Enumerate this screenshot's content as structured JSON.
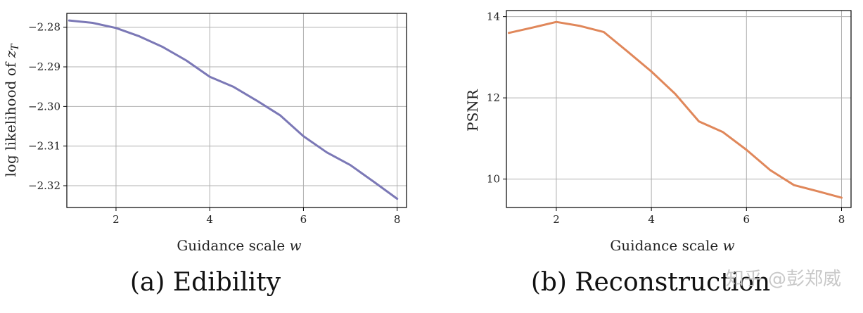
{
  "chart_data": [
    {
      "type": "line",
      "caption": "(a) Edibility",
      "xlabel": "Guidance scale w",
      "ylabel": "log likelihood of z_T",
      "xlim": [
        0.95,
        8.2
      ],
      "ylim": [
        -2.3255,
        -2.2765
      ],
      "xticks": [
        2,
        4,
        6,
        8
      ],
      "yticks": [
        -2.28,
        -2.29,
        -2.3,
        -2.31,
        -2.32
      ],
      "ytick_labels": [
        "−2.28",
        "−2.29",
        "−2.30",
        "−2.31",
        "−2.32"
      ],
      "grid": true,
      "color": "#7b78b6",
      "x": [
        1,
        1.5,
        2,
        2.5,
        3,
        3.5,
        4,
        4.5,
        5,
        5.5,
        6,
        6.5,
        7,
        7.5,
        8
      ],
      "y": [
        -2.2783,
        -2.2789,
        -2.2802,
        -2.2823,
        -2.285,
        -2.2884,
        -2.2925,
        -2.295,
        -2.2985,
        -2.3022,
        -2.3075,
        -2.3116,
        -2.3148,
        -2.319,
        -2.3233
      ]
    },
    {
      "type": "line",
      "caption": "(b) Reconstruction",
      "xlabel": "Guidance scale w",
      "ylabel": "PSNR",
      "xlim": [
        0.95,
        8.2
      ],
      "ylim": [
        9.3,
        14.15
      ],
      "xticks": [
        2,
        4,
        6,
        8
      ],
      "yticks": [
        10,
        12,
        14
      ],
      "ytick_labels": [
        "10",
        "12",
        "14"
      ],
      "grid": true,
      "color": "#e0875a",
      "x": [
        1,
        1.5,
        2,
        2.5,
        3,
        3.5,
        4,
        4.5,
        5,
        5.5,
        6,
        6.5,
        7,
        7.5,
        8
      ],
      "y": [
        13.6,
        13.73,
        13.87,
        13.77,
        13.62,
        13.14,
        12.65,
        12.1,
        11.42,
        11.16,
        10.72,
        10.22,
        9.85,
        9.7,
        9.54
      ]
    }
  ],
  "watermark": "知乎 @彭郑威"
}
